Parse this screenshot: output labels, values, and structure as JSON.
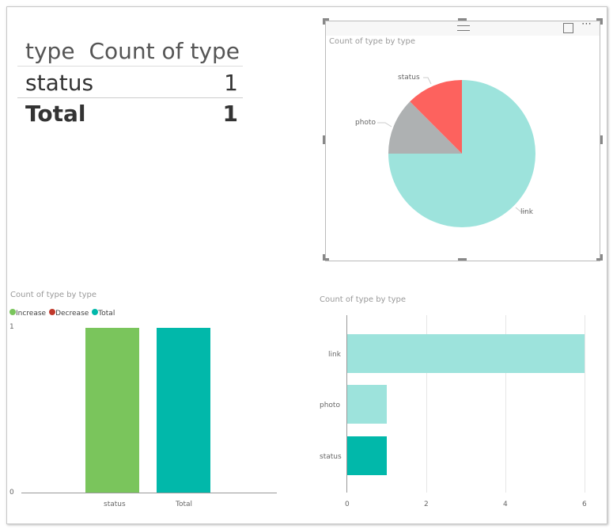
{
  "table": {
    "headers": [
      "type",
      "Count of type"
    ],
    "rows": [
      {
        "type": "status",
        "count": "1"
      }
    ],
    "total": {
      "label": "Total",
      "count": "1"
    }
  },
  "pie": {
    "title": "Count of type by type",
    "icons": [
      "focus-mode-icon",
      "more-options-icon"
    ],
    "more_label": "⋯",
    "chart_data": {
      "type": "pie",
      "title": "Count of type by type",
      "labels": [
        "link",
        "photo",
        "status"
      ],
      "values": [
        6,
        1,
        1
      ],
      "colors": [
        "#9de3dc",
        "#aeb1b2",
        "#fd625e"
      ]
    }
  },
  "waterfall": {
    "title": "Count of type by type",
    "legend": [
      {
        "label": "Increase",
        "color": "#7ac55c"
      },
      {
        "label": "Decrease",
        "color": "#c0392b"
      },
      {
        "label": "Total",
        "color": "#01b8aa"
      }
    ],
    "chart_data": {
      "type": "bar",
      "title": "Count of type by type",
      "categories": [
        "status",
        "Total"
      ],
      "values": [
        1,
        1
      ],
      "colors": [
        "#7ac55c",
        "#01b8aa"
      ],
      "yticks": [
        "0",
        "1"
      ],
      "ylim": [
        0,
        1
      ]
    }
  },
  "hbar": {
    "title": "Count of type by type",
    "chart_data": {
      "type": "bar",
      "orientation": "horizontal",
      "title": "Count of type by type",
      "categories": [
        "link",
        "photo",
        "status"
      ],
      "values": [
        6,
        1,
        1
      ],
      "colors": [
        "#9de3dc",
        "#9de3dc",
        "#01b8aa"
      ],
      "xticks": [
        "0",
        "2",
        "4",
        "6"
      ],
      "xlim": [
        0,
        6
      ]
    }
  }
}
